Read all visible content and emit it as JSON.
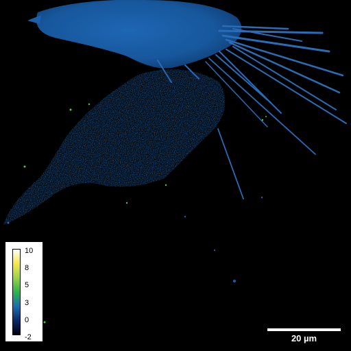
{
  "image": {
    "subject": "cell-fluorescence-map",
    "colors": {
      "background": "#000000",
      "cell_body": "#1a5fa8",
      "cell_body_dark": "#0e3a6e",
      "speckle_green": "#3fd13f",
      "filament": "#2a6cb5"
    }
  },
  "colorbar": {
    "ticks": [
      "10",
      "8",
      "5",
      "3",
      "0",
      "-2"
    ],
    "gradient_colors": [
      "#ffffff",
      "#f5e84a",
      "#9bd24a",
      "#2fb34a",
      "#1c6fb0",
      "#0a2a66",
      "#000010"
    ]
  },
  "scalebar": {
    "label": "20 µm"
  }
}
